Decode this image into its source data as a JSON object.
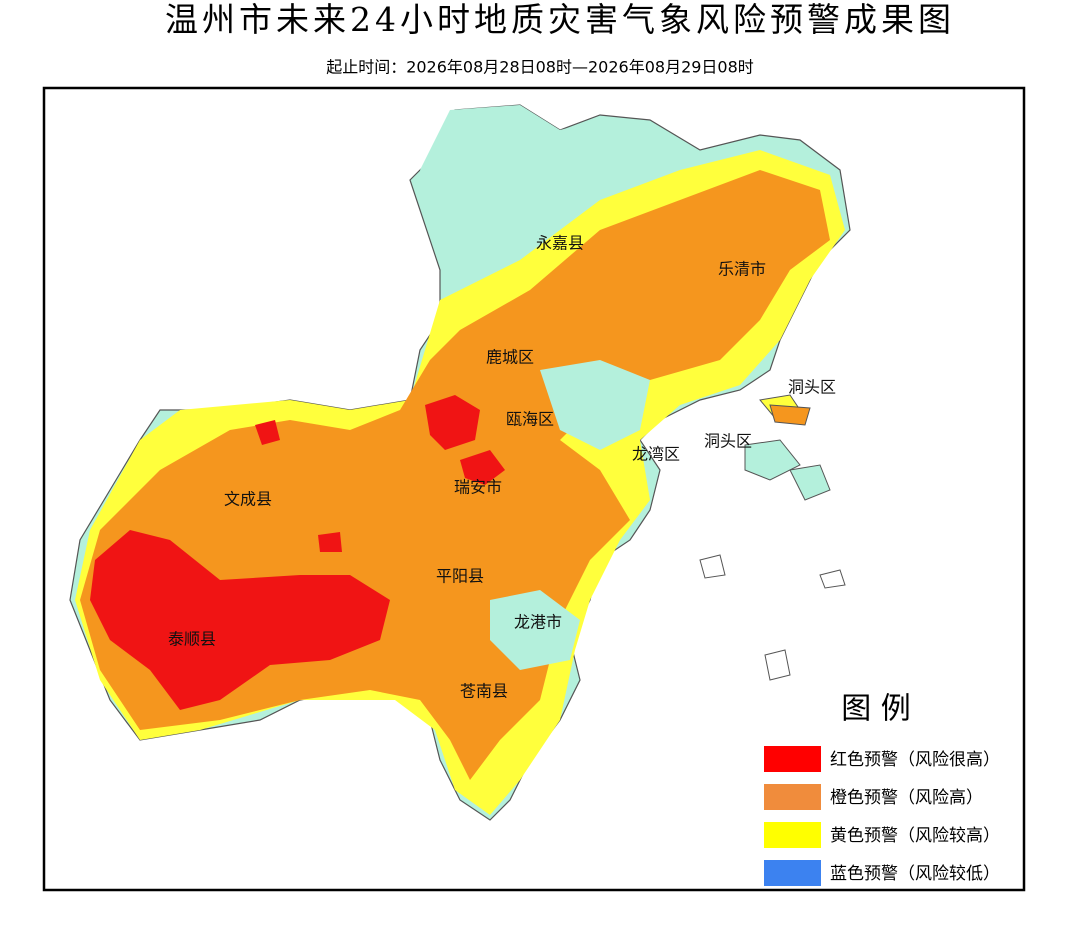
{
  "title": "温州市未来24小时地质灾害气象风险预警成果图",
  "subtitle": "起止时间：2026年08月28日08时—2026年08月29日08时",
  "districts": [
    "永嘉县",
    "乐清市",
    "鹿城区",
    "瓯海区",
    "洞头区",
    "洞头区",
    "龙湾区",
    "瑞安市",
    "文成县",
    "平阳县",
    "龙港市",
    "泰顺县",
    "苍南县"
  ],
  "legend": {
    "title": "图 例",
    "items": [
      {
        "label": "红色预警（风险很高）",
        "color": "#ff0000"
      },
      {
        "label": "橙色预警（风险高）",
        "color": "#f08c3c"
      },
      {
        "label": "黄色预警（风险较高）",
        "color": "#ffff00"
      },
      {
        "label": "蓝色预警（风险较低）",
        "color": "#3c82f0"
      }
    ]
  }
}
